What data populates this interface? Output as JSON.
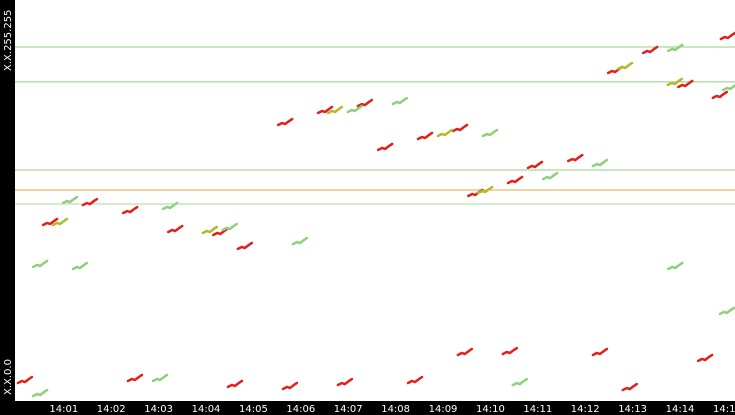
{
  "chart_data": {
    "type": "scatter",
    "xlim": [
      -0.03,
      15.16
    ],
    "ylim": [
      0,
      256
    ],
    "xticks": [
      {
        "value": 1,
        "label": "14:01"
      },
      {
        "value": 2,
        "label": "14:02"
      },
      {
        "value": 3,
        "label": "14:03"
      },
      {
        "value": 4,
        "label": "14:04"
      },
      {
        "value": 5,
        "label": "14:05"
      },
      {
        "value": 6,
        "label": "14:06"
      },
      {
        "value": 7,
        "label": "14:07"
      },
      {
        "value": 8,
        "label": "14:08"
      },
      {
        "value": 9,
        "label": "14:09"
      },
      {
        "value": 10,
        "label": "14:10"
      },
      {
        "value": 11,
        "label": "14:11"
      },
      {
        "value": 12,
        "label": "14:12"
      },
      {
        "value": 13,
        "label": "14:13"
      },
      {
        "value": 14,
        "label": "14:14"
      },
      {
        "value": 15,
        "label": "14:15"
      }
    ],
    "yticks": [
      {
        "value": 0,
        "label": "X.X.0.0"
      },
      {
        "value": 255,
        "label": "X.X.255.255"
      }
    ],
    "hlines": [
      {
        "value": 226.0,
        "color": "#8fcf7f"
      },
      {
        "value": 203.7,
        "color": "#8fcf7f"
      },
      {
        "value": 147.5,
        "color": "#8fcf7f"
      },
      {
        "value": 134.7,
        "color": "#d9a94a"
      },
      {
        "value": 125.8,
        "color": "#a8d99a"
      }
    ],
    "series": [
      {
        "color": "#e0201a",
        "x": [
          0.71,
          1.55,
          2.4,
          3.35,
          4.3,
          4.82,
          5.67,
          6.51,
          7.35,
          7.78,
          8.62,
          9.36,
          9.68,
          10.52,
          10.94,
          11.79,
          12.63,
          13.37,
          14.11,
          14.84,
          15.01,
          0.18,
          2.5,
          4.61,
          5.77,
          6.93,
          8.41,
          9.46,
          10.41,
          12.31,
          14.53,
          12.94
        ],
        "values": [
          114.3,
          127.0,
          121.9,
          109.8,
          107.9,
          99.0,
          178.1,
          185.8,
          190.2,
          162.2,
          169.2,
          174.3,
          132.8,
          141.1,
          150.7,
          155.1,
          211.3,
          224.1,
          202.4,
          195.4,
          233.0,
          13.4,
          14.7,
          10.9,
          9.6,
          12.1,
          13.4,
          31.3,
          31.9,
          31.3,
          27.5,
          8.9
        ]
      },
      {
        "color": "#8fd07a",
        "x": [
          1.13,
          3.24,
          5.98,
          8.09,
          9.99,
          12.31,
          13.9,
          15.06,
          0.5,
          1.34,
          13.9,
          3.03,
          0.5,
          14.99,
          10.62,
          11.26,
          7.14,
          4.5
        ],
        "values": [
          128.3,
          124.5,
          102.1,
          191.5,
          171.1,
          151.9,
          225.4,
          200.5,
          87.5,
          86.2,
          86.2,
          14.7,
          5.1,
          57.5,
          12.1,
          143.6,
          186.4,
          111.1
        ]
      },
      {
        "color": "#b5b82a",
        "x": [
          0.92,
          4.08,
          6.72,
          9.04,
          9.89,
          12.84,
          13.89
        ],
        "values": [
          114.3,
          109.2,
          185.8,
          171.1,
          134.7,
          213.9,
          203.7
        ]
      }
    ]
  }
}
